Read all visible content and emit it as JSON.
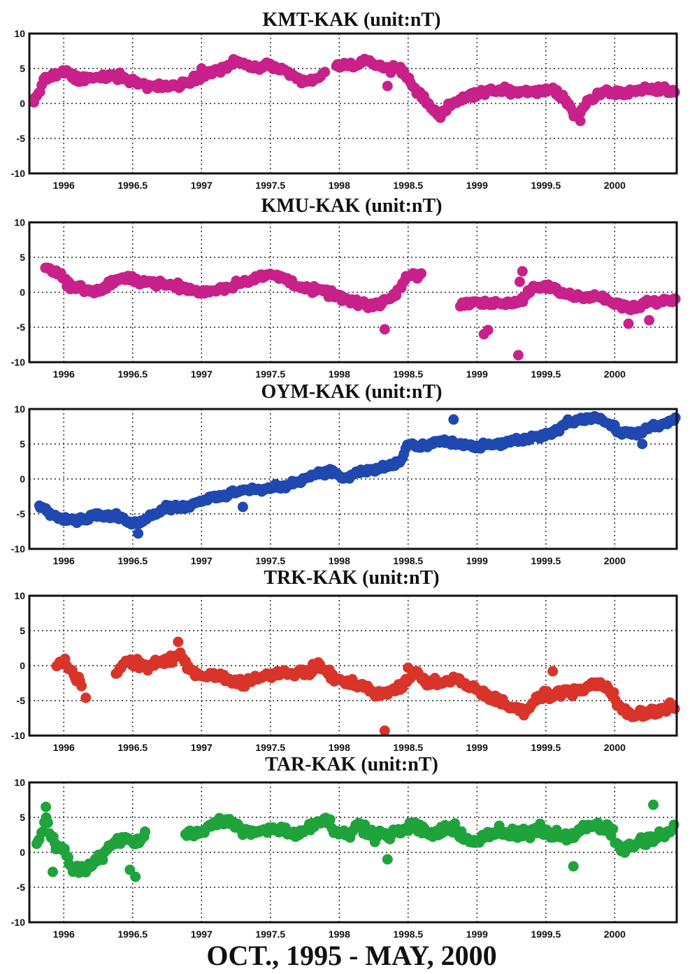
{
  "figure_caption": "OCT., 1995 - MAY, 2000",
  "chart_data": [
    {
      "type": "scatter",
      "title": "KMT-KAK (unit:nT)",
      "color": "#c8218a",
      "xlim": [
        1995.75,
        2000.45
      ],
      "ylim": [
        -10,
        10
      ],
      "xticks": [
        1996,
        1996.5,
        1997,
        1997.5,
        1998,
        1998.5,
        1999,
        1999.5,
        2000
      ],
      "xtick_labels": [
        "1996",
        "1996.5",
        "1997",
        "1997.5",
        "1998",
        "1998.5",
        "1999",
        "1999.5",
        "2000"
      ],
      "yticks": [
        10,
        5,
        0,
        -5,
        -10
      ],
      "grid": true,
      "anchors": [
        [
          1995.78,
          0.2
        ],
        [
          1995.86,
          3.5
        ],
        [
          1996.0,
          4.5
        ],
        [
          1996.1,
          3.5
        ],
        [
          1996.2,
          3.5
        ],
        [
          1996.4,
          4.0
        ],
        [
          1996.6,
          2.5
        ],
        [
          1996.8,
          2.5
        ],
        [
          1997.0,
          4.0
        ],
        [
          1997.15,
          5.0
        ],
        [
          1997.25,
          6.0
        ],
        [
          1997.4,
          5.0
        ],
        [
          1997.5,
          5.5
        ],
        [
          1997.6,
          4.5
        ],
        [
          1997.75,
          3.0
        ],
        [
          1997.85,
          3.5
        ],
        [
          1997.95,
          5.5
        ],
        [
          1998.1,
          5.5
        ],
        [
          1998.2,
          6.0
        ],
        [
          1998.35,
          5.0
        ],
        [
          1998.45,
          5.0
        ],
        [
          1998.55,
          2.0
        ],
        [
          1998.65,
          0.0
        ],
        [
          1998.72,
          -1.8
        ],
        [
          1998.8,
          -0.5
        ],
        [
          1998.9,
          0.8
        ],
        [
          1999.05,
          1.8
        ],
        [
          1999.2,
          1.8
        ],
        [
          1999.4,
          1.5
        ],
        [
          1999.55,
          2.0
        ],
        [
          1999.65,
          0.5
        ],
        [
          1999.72,
          -2.0
        ],
        [
          1999.8,
          0.0
        ],
        [
          1999.9,
          1.5
        ],
        [
          2000.05,
          1.5
        ],
        [
          2000.2,
          2.0
        ],
        [
          2000.35,
          2.0
        ],
        [
          2000.44,
          1.5
        ]
      ],
      "gaps": [
        [
          1995.95,
          1995.98
        ],
        [
          1997.9,
          1997.97
        ]
      ],
      "scatter": 0.7,
      "outliers": [
        [
          1997.0,
          5.0
        ],
        [
          1998.35,
          2.5
        ],
        [
          1999.75,
          -2.5
        ]
      ]
    },
    {
      "type": "scatter",
      "title": "KMU-KAK (unit:nT)",
      "color": "#c8218a",
      "xlim": [
        1995.75,
        2000.45
      ],
      "ylim": [
        -10,
        10
      ],
      "xticks": [
        1996,
        1996.5,
        1997,
        1997.5,
        1998,
        1998.5,
        1999,
        1999.5,
        2000
      ],
      "xtick_labels": [
        "1996",
        "1996.5",
        "1997",
        "1997.5",
        "1998",
        "1998.5",
        "1999",
        "1999.5",
        "2000"
      ],
      "yticks": [
        10,
        5,
        0,
        -5,
        -10
      ],
      "grid": true,
      "anchors": [
        [
          1995.87,
          3.5
        ],
        [
          1995.95,
          3.0
        ],
        [
          1996.05,
          0.8
        ],
        [
          1996.15,
          0.5
        ],
        [
          1996.25,
          0.0
        ],
        [
          1996.35,
          1.5
        ],
        [
          1996.45,
          2.0
        ],
        [
          1996.6,
          1.5
        ],
        [
          1996.8,
          1.0
        ],
        [
          1997.0,
          0.0
        ],
        [
          1997.15,
          0.5
        ],
        [
          1997.3,
          1.5
        ],
        [
          1997.5,
          2.5
        ],
        [
          1997.6,
          2.0
        ],
        [
          1997.75,
          0.5
        ],
        [
          1997.9,
          0.0
        ],
        [
          1998.05,
          -1.0
        ],
        [
          1998.2,
          -2.0
        ],
        [
          1998.32,
          -1.5
        ],
        [
          1998.42,
          0.0
        ],
        [
          1998.5,
          2.5
        ],
        [
          1998.6,
          2.5
        ]
      ],
      "anchors2": [
        [
          1998.88,
          -1.5
        ],
        [
          1999.0,
          -1.5
        ],
        [
          1999.1,
          -1.5
        ],
        [
          1999.25,
          -1.5
        ],
        [
          1999.32,
          -1.5
        ],
        [
          1999.4,
          0.5
        ],
        [
          1999.5,
          1.0
        ],
        [
          1999.6,
          0.0
        ],
        [
          1999.7,
          -0.5
        ],
        [
          1999.85,
          -0.5
        ],
        [
          2000.0,
          -1.5
        ],
        [
          2000.1,
          -2.5
        ],
        [
          2000.25,
          -1.5
        ],
        [
          2000.44,
          -1.0
        ]
      ],
      "scatter": 0.7,
      "outliers": [
        [
          1998.33,
          -5.3
        ],
        [
          1999.05,
          -6.0
        ],
        [
          1999.08,
          -5.4
        ],
        [
          1999.3,
          -9.0
        ],
        [
          1999.33,
          3.0
        ],
        [
          1999.31,
          1.5
        ],
        [
          2000.1,
          -4.5
        ],
        [
          2000.25,
          -4.0
        ]
      ]
    },
    {
      "type": "scatter",
      "title": "OYM-KAK (unit:nT)",
      "color": "#1f48b0",
      "xlim": [
        1995.75,
        2000.45
      ],
      "ylim": [
        -10,
        10
      ],
      "xticks": [
        1996,
        1996.5,
        1997,
        1997.5,
        1998,
        1998.5,
        1999,
        1999.5,
        2000
      ],
      "xtick_labels": [
        "1996",
        "1996.5",
        "1997",
        "1997.5",
        "1998",
        "1998.5",
        "1999",
        "1999.5",
        "2000"
      ],
      "yticks": [
        10,
        5,
        0,
        -5,
        -10
      ],
      "grid": true,
      "anchors": [
        [
          1995.82,
          -3.5
        ],
        [
          1995.9,
          -5.0
        ],
        [
          1996.0,
          -5.5
        ],
        [
          1996.1,
          -6.0
        ],
        [
          1996.25,
          -5.0
        ],
        [
          1996.4,
          -5.5
        ],
        [
          1996.5,
          -6.5
        ],
        [
          1996.6,
          -5.5
        ],
        [
          1996.75,
          -4.0
        ],
        [
          1996.9,
          -4.0
        ],
        [
          1997.0,
          -3.0
        ],
        [
          1997.15,
          -2.5
        ],
        [
          1997.3,
          -1.5
        ],
        [
          1997.45,
          -1.5
        ],
        [
          1997.6,
          -1.0
        ],
        [
          1997.75,
          0.0
        ],
        [
          1997.85,
          1.0
        ],
        [
          1997.95,
          1.0
        ],
        [
          1998.05,
          0.0
        ],
        [
          1998.15,
          1.0
        ],
        [
          1998.3,
          1.5
        ],
        [
          1998.45,
          2.5
        ],
        [
          1998.5,
          5.0
        ],
        [
          1998.6,
          4.5
        ],
        [
          1998.75,
          5.5
        ],
        [
          1998.85,
          5.0
        ],
        [
          1999.0,
          4.5
        ],
        [
          1999.15,
          5.0
        ],
        [
          1999.3,
          5.5
        ],
        [
          1999.45,
          6.0
        ],
        [
          1999.55,
          6.5
        ],
        [
          1999.65,
          8.0
        ],
        [
          1999.75,
          8.5
        ],
        [
          1999.85,
          9.0
        ],
        [
          1999.95,
          8.0
        ],
        [
          2000.05,
          6.5
        ],
        [
          2000.15,
          6.5
        ],
        [
          2000.3,
          7.5
        ],
        [
          2000.44,
          8.5
        ]
      ],
      "scatter": 0.6,
      "outliers": [
        [
          1996.54,
          -7.8
        ],
        [
          1997.3,
          -4.0
        ],
        [
          1998.83,
          8.5
        ],
        [
          2000.2,
          5.0
        ]
      ]
    },
    {
      "type": "scatter",
      "title": "TRK-KAK (unit:nT)",
      "color": "#d9342a",
      "xlim": [
        1995.75,
        2000.45
      ],
      "ylim": [
        -10,
        10
      ],
      "xticks": [
        1996,
        1996.5,
        1997,
        1997.5,
        1998,
        1998.5,
        1999,
        1999.5,
        2000
      ],
      "xtick_labels": [
        "1996",
        "1996.5",
        "1997",
        "1997.5",
        "1998",
        "1998.5",
        "1999",
        "1999.5",
        "2000"
      ],
      "yticks": [
        10,
        5,
        0,
        -5,
        -10
      ],
      "grid": true,
      "anchors": [
        [
          1995.95,
          0.0
        ],
        [
          1996.0,
          0.5
        ],
        [
          1996.07,
          -1.0
        ],
        [
          1996.13,
          -3.0
        ]
      ],
      "anchors2": [
        [
          1996.38,
          -1.0
        ],
        [
          1996.45,
          0.5
        ],
        [
          1996.6,
          0.0
        ],
        [
          1996.75,
          0.5
        ],
        [
          1996.85,
          1.5
        ],
        [
          1996.95,
          -1.0
        ],
        [
          1997.05,
          -1.5
        ],
        [
          1997.15,
          -1.5
        ],
        [
          1997.3,
          -2.5
        ],
        [
          1997.45,
          -1.5
        ],
        [
          1997.6,
          -1.0
        ],
        [
          1997.75,
          -1.0
        ],
        [
          1997.85,
          0.0
        ],
        [
          1997.95,
          -1.5
        ],
        [
          1998.05,
          -2.5
        ],
        [
          1998.15,
          -2.5
        ],
        [
          1998.25,
          -4.0
        ],
        [
          1998.35,
          -4.0
        ],
        [
          1998.45,
          -3.0
        ],
        [
          1998.55,
          -1.0
        ],
        [
          1998.65,
          -2.5
        ],
        [
          1998.75,
          -2.5
        ],
        [
          1998.85,
          -2.0
        ],
        [
          1998.95,
          -3.0
        ],
        [
          1999.05,
          -4.0
        ],
        [
          1999.15,
          -5.0
        ],
        [
          1999.25,
          -6.0
        ],
        [
          1999.35,
          -6.5
        ],
        [
          1999.45,
          -4.5
        ],
        [
          1999.55,
          -4.0
        ],
        [
          1999.65,
          -3.5
        ],
        [
          1999.75,
          -4.0
        ],
        [
          1999.85,
          -2.5
        ],
        [
          1999.95,
          -3.0
        ],
        [
          2000.05,
          -6.5
        ],
        [
          2000.15,
          -7.0
        ],
        [
          2000.3,
          -6.5
        ],
        [
          2000.44,
          -5.5
        ]
      ],
      "scatter": 0.9,
      "outliers": [
        [
          1996.16,
          -4.6
        ],
        [
          1998.33,
          -9.3
        ],
        [
          1996.83,
          3.4
        ],
        [
          1998.5,
          -0.3
        ],
        [
          1999.55,
          -0.8
        ]
      ]
    },
    {
      "type": "scatter",
      "title": "TAR-KAK (unit:nT)",
      "color": "#1fa33b",
      "xlim": [
        1995.75,
        2000.45
      ],
      "ylim": [
        -10,
        10
      ],
      "xticks": [
        1996,
        1996.5,
        1997,
        1997.5,
        1998,
        1998.5,
        1999,
        1999.5,
        2000
      ],
      "xtick_labels": [
        "1996",
        "1996.5",
        "1997",
        "1997.5",
        "1998",
        "1998.5",
        "1999",
        "1999.5",
        "2000"
      ],
      "yticks": [
        10,
        5,
        0,
        -5,
        -10
      ],
      "grid": true,
      "anchors": [
        [
          1995.8,
          1.0
        ],
        [
          1995.87,
          4.5
        ],
        [
          1995.93,
          1.0
        ],
        [
          1996.0,
          0.5
        ],
        [
          1996.05,
          -2.0
        ],
        [
          1996.15,
          -2.5
        ],
        [
          1996.25,
          -1.0
        ],
        [
          1996.35,
          1.0
        ],
        [
          1996.45,
          2.0
        ],
        [
          1996.52,
          1.0
        ],
        [
          1996.6,
          3.5
        ]
      ],
      "anchors2": [
        [
          1996.88,
          2.5
        ],
        [
          1997.0,
          3.0
        ],
        [
          1997.1,
          4.0
        ],
        [
          1997.2,
          4.5
        ],
        [
          1997.3,
          3.0
        ],
        [
          1997.45,
          3.0
        ],
        [
          1997.55,
          3.5
        ],
        [
          1997.7,
          2.5
        ],
        [
          1997.8,
          4.0
        ],
        [
          1997.9,
          5.0
        ],
        [
          1997.98,
          3.0
        ],
        [
          1998.05,
          2.5
        ],
        [
          1998.15,
          4.0
        ],
        [
          1998.25,
          2.5
        ],
        [
          1998.35,
          2.5
        ],
        [
          1998.45,
          3.0
        ],
        [
          1998.55,
          4.0
        ],
        [
          1998.65,
          2.5
        ],
        [
          1998.75,
          3.0
        ],
        [
          1998.85,
          3.5
        ],
        [
          1998.95,
          1.5
        ],
        [
          1999.05,
          2.0
        ],
        [
          1999.15,
          3.0
        ],
        [
          1999.25,
          2.5
        ],
        [
          1999.35,
          2.5
        ],
        [
          1999.45,
          3.5
        ],
        [
          1999.55,
          2.5
        ],
        [
          1999.65,
          2.5
        ],
        [
          1999.75,
          3.0
        ],
        [
          1999.85,
          4.0
        ],
        [
          1999.95,
          3.5
        ],
        [
          2000.05,
          0.5
        ],
        [
          2000.15,
          1.0
        ],
        [
          2000.25,
          2.0
        ],
        [
          2000.35,
          2.5
        ],
        [
          2000.44,
          3.5
        ]
      ],
      "scatter": 1.1,
      "outliers": [
        [
          1995.87,
          6.5
        ],
        [
          1995.92,
          -2.8
        ],
        [
          1996.52,
          -3.5
        ],
        [
          1996.48,
          -2.5
        ],
        [
          1998.35,
          -1.0
        ],
        [
          1999.7,
          -2.0
        ],
        [
          2000.28,
          6.8
        ]
      ]
    }
  ]
}
